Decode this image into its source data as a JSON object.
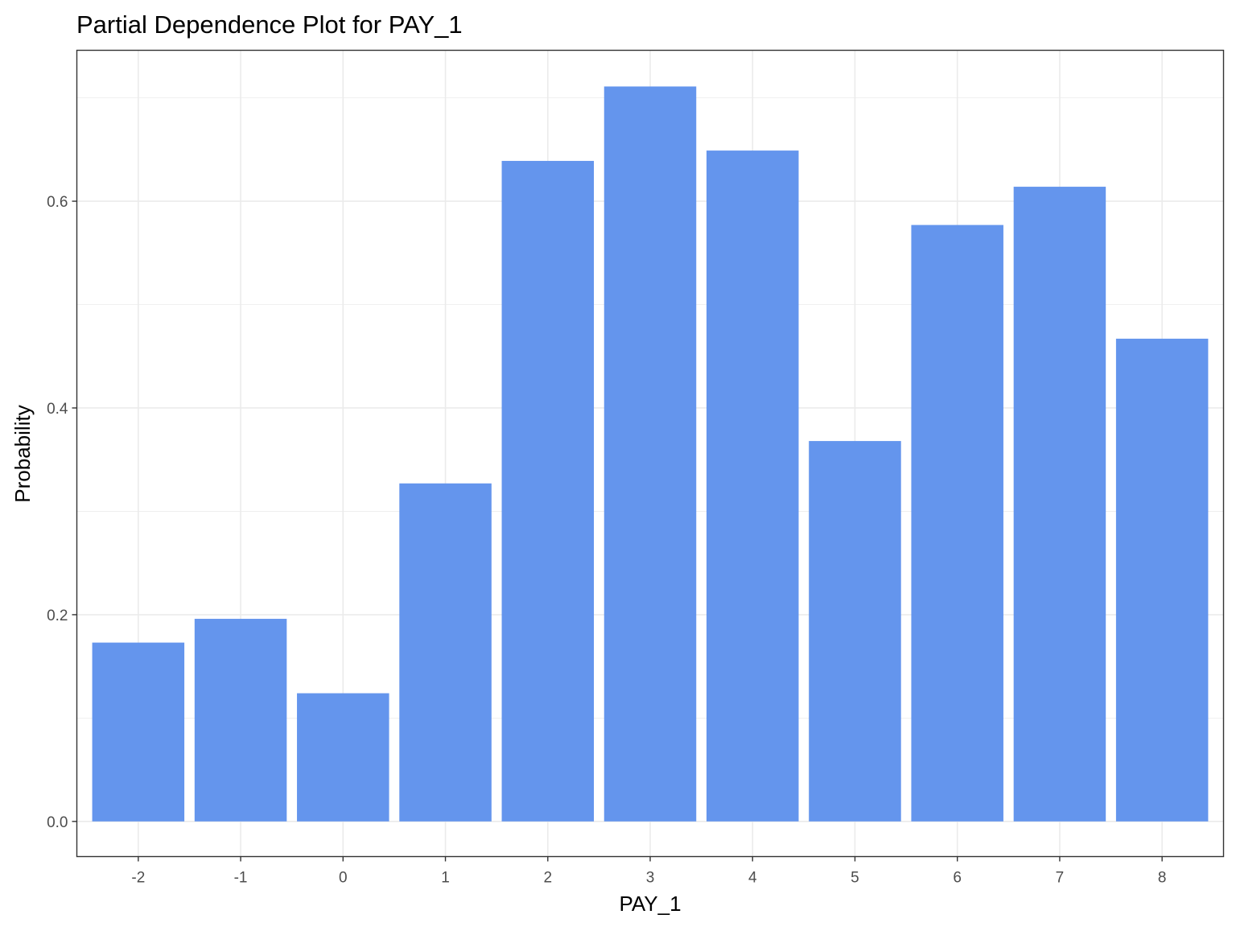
{
  "chart_data": {
    "type": "bar",
    "title": "Partial Dependence Plot for PAY_1",
    "xlabel": "PAY_1",
    "ylabel": "Probability",
    "categories": [
      "-2",
      "-1",
      "0",
      "1",
      "2",
      "3",
      "4",
      "5",
      "6",
      "7",
      "8"
    ],
    "values": [
      0.173,
      0.196,
      0.124,
      0.327,
      0.639,
      0.711,
      0.649,
      0.368,
      0.577,
      0.614,
      0.467
    ],
    "ylim": [
      -0.034,
      0.746
    ],
    "yticks": [
      0.0,
      0.2,
      0.4,
      0.6
    ],
    "ytick_labels": [
      "0.0",
      "0.2",
      "0.4",
      "0.6"
    ],
    "y_minor_ticks": [
      0.1,
      0.3,
      0.5,
      0.7
    ],
    "grid": true,
    "legend": "none",
    "colors": {
      "bar": "#6495ED",
      "grid": "#ebebeb",
      "panel_border": "#333333",
      "tick_text": "#4d4d4d"
    }
  }
}
